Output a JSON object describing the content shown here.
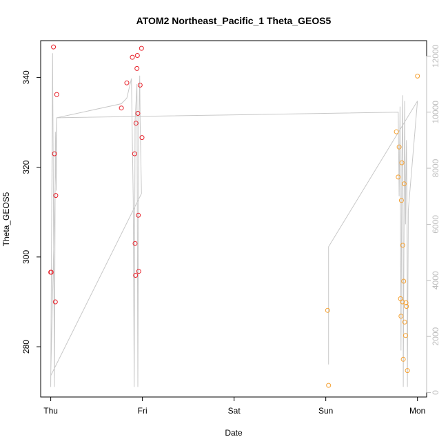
{
  "chart_data": {
    "type": "scatter",
    "title": "ATOM2 Northeast_Pacific_1 Theta_GEOS5",
    "xlabel": "Date",
    "ylabel": "Theta_GEOS5",
    "x_ticks": [
      {
        "label": "Thu",
        "value": 0
      },
      {
        "label": "Fri",
        "value": 1
      },
      {
        "label": "Sat",
        "value": 2
      },
      {
        "label": "Sun",
        "value": 3
      },
      {
        "label": "Mon",
        "value": 4
      }
    ],
    "xlim": [
      -0.11,
      4.1
    ],
    "ylim": [
      268.8,
      348.2
    ],
    "y_ticks": [
      280,
      300,
      320,
      340
    ],
    "y2lim": [
      -160,
      12550
    ],
    "y2_ticks": [
      0,
      2000,
      4000,
      6000,
      8000,
      10000,
      12000
    ],
    "series": [
      {
        "color": "#e8212a",
        "points": [
          {
            "x": 0.0,
            "y": 296.6
          },
          {
            "x": 0.005,
            "y": 296.6
          },
          {
            "x": 0.03,
            "y": 346.8
          },
          {
            "x": 0.04,
            "y": 323.0
          },
          {
            "x": 0.05,
            "y": 290.0
          },
          {
            "x": 0.055,
            "y": 313.7
          },
          {
            "x": 0.065,
            "y": 336.2
          },
          {
            "x": 0.77,
            "y": 333.2
          },
          {
            "x": 0.83,
            "y": 338.8
          },
          {
            "x": 0.89,
            "y": 344.5
          },
          {
            "x": 0.915,
            "y": 323.0
          },
          {
            "x": 0.92,
            "y": 303.0
          },
          {
            "x": 0.925,
            "y": 295.9
          },
          {
            "x": 0.93,
            "y": 329.8
          },
          {
            "x": 0.94,
            "y": 342.0
          },
          {
            "x": 0.945,
            "y": 344.9
          },
          {
            "x": 0.95,
            "y": 332.0
          },
          {
            "x": 0.955,
            "y": 309.3
          },
          {
            "x": 0.96,
            "y": 296.8
          },
          {
            "x": 0.975,
            "y": 338.3
          },
          {
            "x": 0.99,
            "y": 346.5
          },
          {
            "x": 0.995,
            "y": 326.6
          }
        ]
      },
      {
        "color": "#f5a030",
        "points": [
          {
            "x": 3.02,
            "y": 288.1
          },
          {
            "x": 3.03,
            "y": 271.4
          },
          {
            "x": 3.77,
            "y": 327.9
          },
          {
            "x": 3.79,
            "y": 317.8
          },
          {
            "x": 3.8,
            "y": 324.5
          },
          {
            "x": 3.815,
            "y": 290.7
          },
          {
            "x": 3.82,
            "y": 286.8
          },
          {
            "x": 3.825,
            "y": 312.6
          },
          {
            "x": 3.83,
            "y": 321.0
          },
          {
            "x": 3.835,
            "y": 290.0
          },
          {
            "x": 3.84,
            "y": 302.6
          },
          {
            "x": 3.845,
            "y": 277.2
          },
          {
            "x": 3.85,
            "y": 294.6
          },
          {
            "x": 3.855,
            "y": 316.3
          },
          {
            "x": 3.86,
            "y": 285.5
          },
          {
            "x": 3.87,
            "y": 282.5
          },
          {
            "x": 3.875,
            "y": 289.8
          },
          {
            "x": 3.88,
            "y": 289.0
          },
          {
            "x": 3.89,
            "y": 274.7
          },
          {
            "x": 4.0,
            "y": 340.3
          }
        ]
      }
    ],
    "secondary_line": {
      "color": "#c8c8c8",
      "points": [
        {
          "x": 0.0,
          "y2": 600
        },
        {
          "x": 0.0,
          "y2": 200
        },
        {
          "x": 0.02,
          "y2": 12100
        },
        {
          "x": 0.04,
          "y2": 200
        },
        {
          "x": 0.05,
          "y2": 9300
        },
        {
          "x": 0.06,
          "y2": 7200
        },
        {
          "x": 0.065,
          "y2": 9800
        },
        {
          "x": 0.77,
          "y2": 10300
        },
        {
          "x": 0.83,
          "y2": 10500
        },
        {
          "x": 0.88,
          "y2": 11200
        },
        {
          "x": 0.9,
          "y2": 6900
        },
        {
          "x": 0.91,
          "y2": 200
        },
        {
          "x": 0.92,
          "y2": 9700
        },
        {
          "x": 0.94,
          "y2": 11000
        },
        {
          "x": 0.95,
          "y2": 200
        },
        {
          "x": 0.96,
          "y2": 9400
        },
        {
          "x": 0.97,
          "y2": 11300
        },
        {
          "x": 0.975,
          "y2": 9700
        },
        {
          "x": 0.99,
          "y2": 7100
        },
        {
          "x": 0.0,
          "y2": 600
        },
        {
          "x": 0.065,
          "y2": 9800
        },
        {
          "x": 3.79,
          "y2": 10000
        },
        {
          "x": 3.8,
          "y2": 7000
        },
        {
          "x": 3.81,
          "y2": 10200
        },
        {
          "x": 3.82,
          "y2": 1500
        },
        {
          "x": 3.83,
          "y2": 8300
        },
        {
          "x": 3.84,
          "y2": 10600
        },
        {
          "x": 3.845,
          "y2": 200
        },
        {
          "x": 3.86,
          "y2": 10400
        },
        {
          "x": 3.87,
          "y2": 6000
        },
        {
          "x": 3.88,
          "y2": 9000
        },
        {
          "x": 3.885,
          "y2": 7200
        },
        {
          "x": 3.89,
          "y2": 200
        },
        {
          "x": 3.9,
          "y2": 6500
        },
        {
          "x": 4.0,
          "y2": 10400
        },
        {
          "x": 3.03,
          "y2": 5200
        },
        {
          "x": 3.03,
          "y2": 1000
        }
      ]
    },
    "grid": false,
    "legend": "none"
  }
}
